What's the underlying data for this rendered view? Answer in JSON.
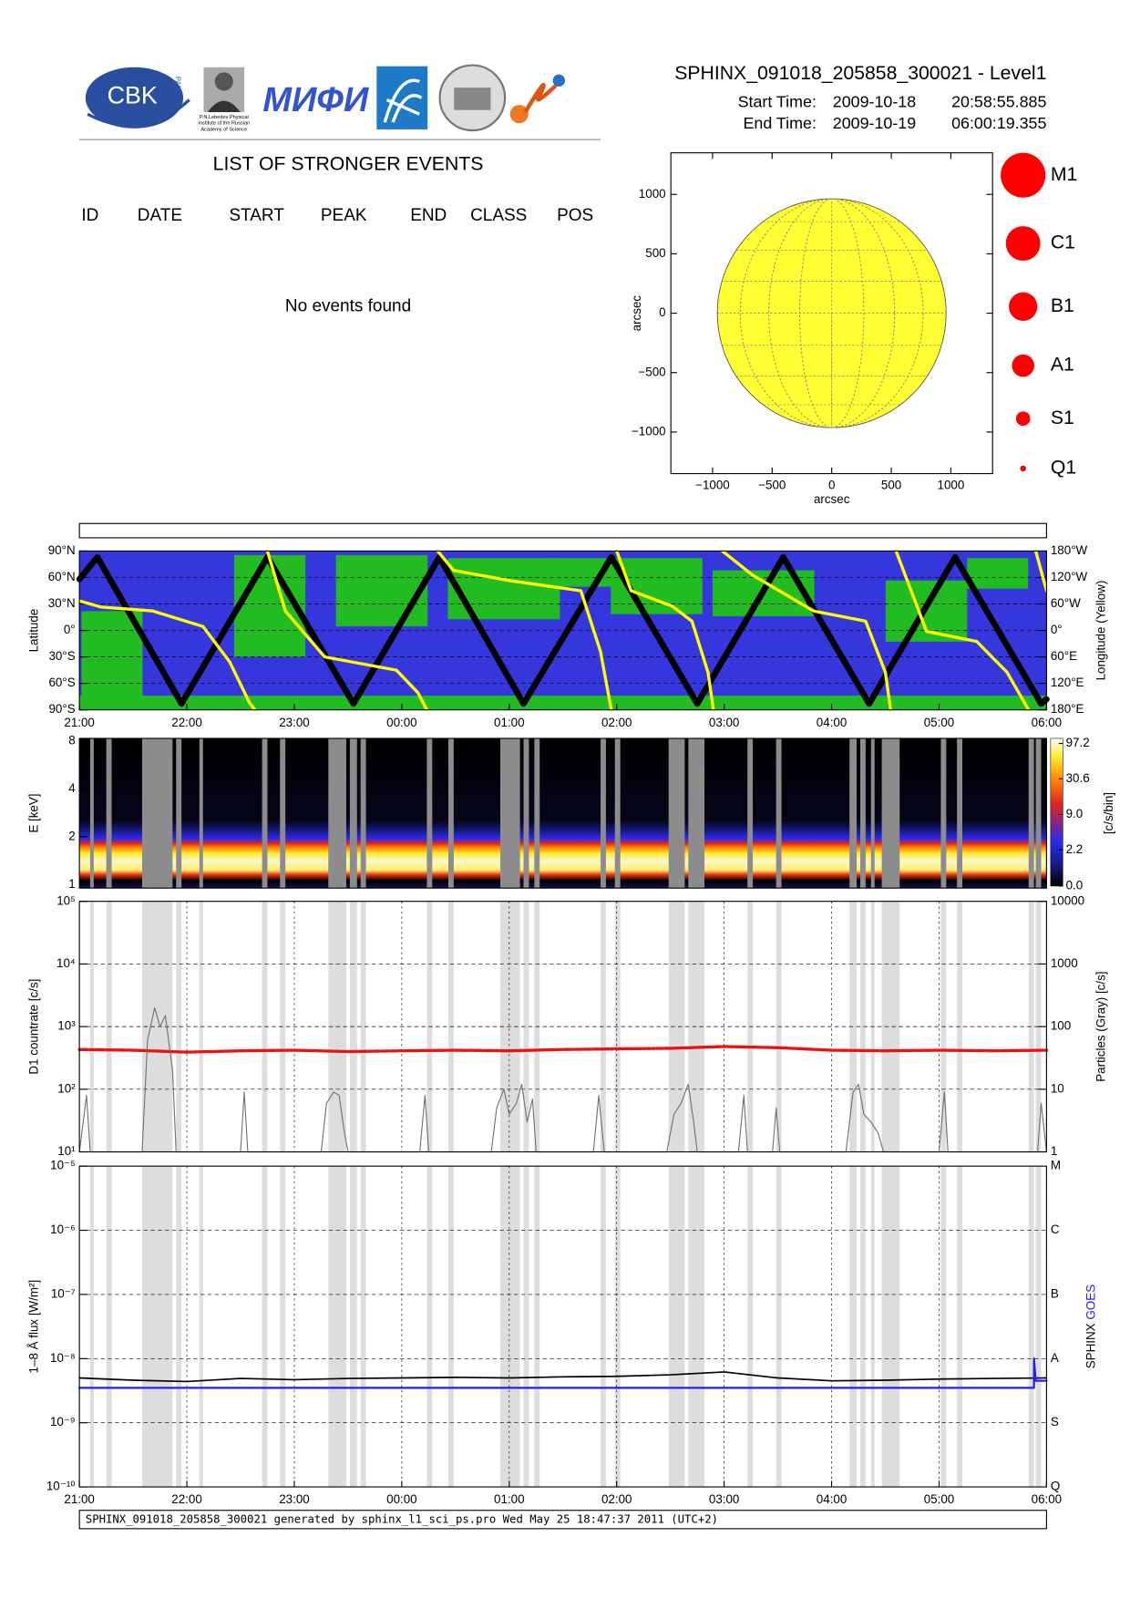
{
  "header": {
    "title": "SPHINX_091018_205858_300021 - Level1",
    "start_label": "Start Time:",
    "start_date": "2009-10-18",
    "start_time": "20:58:55.885",
    "end_label": "End Time:",
    "end_date": "2009-10-19",
    "end_time": "06:00:19.355",
    "logos": [
      "CBK",
      "PAN",
      "P.N.Lebedev Physical",
      "Institute of the Russian",
      "Academy of Science",
      "МИФИ"
    ]
  },
  "events": {
    "title": "LIST OF STRONGER EVENTS",
    "columns": [
      "ID",
      "DATE",
      "START",
      "PEAK",
      "END",
      "CLASS",
      "POS"
    ],
    "message": "No events found"
  },
  "footer": {
    "text": "SPHINX_091018_205858_300021 generated by sphinx_l1_sci_ps.pro Wed May 25 18:47:37 2011 (UTC+2)"
  },
  "chart_data": [
    {
      "type": "disk",
      "xlabel": "arcsec",
      "ylabel": "arcsec",
      "xlim": [
        -1350,
        1350
      ],
      "ylim": [
        -1350,
        1350
      ],
      "xticks": [
        {
          "value": -1000,
          "label": "−1000"
        },
        {
          "value": -500,
          "label": "−500"
        },
        0,
        500,
        1000
      ],
      "yticks": [
        {
          "value": -1000,
          "label": "−1000"
        },
        {
          "value": -500,
          "label": "−500"
        },
        0,
        500,
        1000
      ],
      "disk_radius": 960,
      "disk_color": "#ffff33",
      "size_legend": [
        "M1",
        "C1",
        "B1",
        "A1",
        "S1",
        "Q1"
      ],
      "size_legend_color": "#ff0000"
    },
    {
      "type": "line",
      "ylabel": "Latitude",
      "y2label": "Longitude (Yellow)",
      "xlim": [
        "21:00",
        "06:00"
      ],
      "xticks": [
        "21:00",
        "22:00",
        "23:00",
        "00:00",
        "01:00",
        "02:00",
        "03:00",
        "04:00",
        "05:00",
        "06:00"
      ],
      "ylim": [
        -90,
        90
      ],
      "yticks": [
        {
          "value": -90,
          "label": "90°S"
        },
        {
          "value": -60,
          "label": "60°S"
        },
        {
          "value": -30,
          "label": "30°S"
        },
        {
          "value": 0,
          "label": "0°"
        },
        {
          "value": 30,
          "label": "30°N"
        },
        {
          "value": 60,
          "label": "60°N"
        },
        {
          "value": 90,
          "label": "90°N"
        }
      ],
      "y2lim": [
        -180,
        180
      ],
      "y2ticks": [
        {
          "value": -180,
          "label": "180°E"
        },
        {
          "value": -120,
          "label": "120°E"
        },
        {
          "value": -60,
          "label": "60°E"
        },
        {
          "value": 0,
          "label": "0°"
        },
        {
          "value": 60,
          "label": "60°W"
        },
        {
          "value": 120,
          "label": "120°W"
        },
        {
          "value": 180,
          "label": "180°W"
        }
      ],
      "grid": true,
      "series": [
        {
          "color": "#000000",
          "x": [
            "21:00",
            "21:10",
            "21:57",
            "22:45",
            "23:33",
            "00:21",
            "01:08",
            "01:57",
            "02:45",
            "03:33",
            "04:21",
            "05:09",
            "05:57",
            "06:00"
          ],
          "values": [
            58,
            83,
            -83,
            83,
            -83,
            83,
            -83,
            83,
            -83,
            83,
            -83,
            83,
            -83,
            -78
          ]
        },
        {
          "color": "#ffff00",
          "axis": "y2",
          "x": [
            "21:00",
            "21:12",
            "21:41",
            "22:09",
            "22:24",
            "22:35",
            "22:38",
            null,
            "22:45",
            "22:55",
            "23:17",
            "23:57",
            "00:09",
            "00:14",
            null,
            "00:20",
            "00:29",
            "01:00",
            "01:40",
            "01:51",
            "01:57",
            null,
            "02:00",
            "02:08",
            "02:31",
            "02:42",
            "02:51",
            "02:54",
            null,
            "02:59",
            "03:16",
            "03:50",
            "04:19",
            "04:30",
            "04:33",
            null,
            "04:36",
            "04:53",
            "05:21",
            "05:38",
            "05:50",
            null,
            "05:54",
            "06:00"
          ],
          "values": [
            67,
            53,
            44,
            9,
            -72,
            -164,
            -180,
            null,
            180,
            44,
            -60,
            -90,
            -141,
            -180,
            null,
            180,
            136,
            113,
            90,
            -48,
            -180,
            null,
            180,
            90,
            55,
            21,
            -95,
            -180,
            null,
            180,
            125,
            44,
            21,
            -95,
            -180,
            null,
            180,
            -2,
            -25,
            -95,
            -180,
            null,
            180,
            90
          ]
        }
      ]
    },
    {
      "type": "spectrogram",
      "ylabel": "E [keV]",
      "xlim": [
        "21:00",
        "06:00"
      ],
      "ylim": [
        0.95,
        8.3
      ],
      "log_y": true,
      "yticks": [
        1,
        2,
        4,
        8
      ],
      "clabel": "[c/s/bin]",
      "clim": [
        0,
        97.2
      ],
      "color_scale": "log",
      "cticks": [
        {
          "value": 0,
          "label": "0.0"
        },
        {
          "value": 2.2,
          "label": "2.2"
        },
        {
          "value": 9,
          "label": "9.0"
        },
        {
          "value": 30.6,
          "label": "30.6"
        },
        {
          "value": 97.2,
          "label": "97.2"
        }
      ],
      "gap_color": "#8c8c8c",
      "gaps": [
        [
          "21:06",
          "21:08"
        ],
        [
          "21:15",
          "21:18"
        ],
        [
          "21:35",
          "21:52"
        ],
        [
          "21:54",
          "21:57"
        ],
        [
          "22:07",
          "22:09"
        ],
        [
          "22:42",
          "22:45"
        ],
        [
          "22:52",
          "22:55"
        ],
        [
          "23:19",
          "23:29"
        ],
        [
          "23:31",
          "23:35"
        ],
        [
          "23:37",
          "23:40"
        ],
        [
          "00:14",
          "00:17"
        ],
        [
          "00:26",
          "00:29"
        ],
        [
          "00:55",
          "01:06"
        ],
        [
          "01:08",
          "01:11"
        ],
        [
          "01:14",
          "01:17"
        ],
        [
          "01:51",
          "01:54"
        ],
        [
          "01:59",
          "02:02"
        ],
        [
          "02:29",
          "02:38"
        ],
        [
          "02:40",
          "02:49"
        ],
        [
          "03:13",
          "03:16"
        ],
        [
          "03:29",
          "03:32"
        ],
        [
          "04:10",
          "04:14"
        ],
        [
          "04:16",
          "04:19"
        ],
        [
          "04:22",
          "04:24"
        ],
        [
          "04:28",
          "04:38"
        ],
        [
          "05:01",
          "05:04"
        ],
        [
          "05:10",
          "05:13"
        ],
        [
          "05:50",
          "05:53"
        ],
        [
          "05:54",
          "05:57"
        ]
      ]
    },
    {
      "type": "line",
      "ylabel": "D1 countrate [c/s]",
      "y2label": "Particles (Gray) [c/s]",
      "xlim": [
        "21:00",
        "06:00"
      ],
      "log_y": true,
      "ylim": [
        10,
        100000
      ],
      "yticks": [
        {
          "value": 10,
          "label": "10¹"
        },
        {
          "value": 100,
          "label": "10²"
        },
        {
          "value": 1000,
          "label": "10³"
        },
        {
          "value": 10000,
          "label": "10⁴"
        },
        {
          "value": 100000,
          "label": "10⁵"
        }
      ],
      "y2lim": [
        1,
        10000
      ],
      "y2ticks": [
        1,
        10,
        100,
        1000,
        10000
      ],
      "grid": true,
      "xgrid": true,
      "gap_color": "#dddddd",
      "series": [
        {
          "color": "#ee1111",
          "x": [
            "21:00",
            "21:30",
            "22:00",
            "22:30",
            "23:00",
            "23:30",
            "00:00",
            "00:30",
            "01:00",
            "01:30",
            "02:00",
            "02:30",
            "03:00",
            "03:30",
            "04:00",
            "04:30",
            "05:00",
            "05:30",
            "06:00"
          ],
          "values": [
            430,
            420,
            390,
            410,
            420,
            400,
            410,
            420,
            410,
            430,
            440,
            450,
            480,
            460,
            420,
            410,
            420,
            410,
            420
          ]
        },
        {
          "color": "#707070",
          "axis": "y2",
          "x": [
            "21:00",
            "21:04",
            "21:06",
            "21:35",
            "21:38",
            "21:42",
            "21:45",
            "21:48",
            "21:52",
            "21:54",
            "22:30",
            "22:32",
            "22:34",
            "23:15",
            "23:18",
            "23:22",
            "23:25",
            "23:28",
            "23:30",
            "00:10",
            "00:13",
            "00:15",
            "00:50",
            "00:53",
            "00:57",
            "01:00",
            "01:04",
            "01:07",
            "01:10",
            "01:13",
            "01:15",
            "01:47",
            "01:50",
            "01:53",
            "02:28",
            "02:32",
            "02:36",
            "02:40",
            "02:43",
            "02:45",
            "03:08",
            "03:11",
            "03:13",
            "03:27",
            "03:29",
            "03:31",
            "04:08",
            "04:12",
            "04:15",
            "04:18",
            "04:22",
            "04:26",
            "04:29",
            "05:00",
            "05:03",
            "05:05",
            "05:55",
            "05:57",
            "06:00"
          ],
          "values": [
            1,
            8,
            1,
            1,
            60,
            200,
            100,
            150,
            20,
            1,
            1,
            9,
            1,
            1,
            6,
            9,
            8,
            2,
            1,
            1,
            8,
            1,
            1,
            5,
            10,
            4,
            6,
            12,
            3,
            7,
            1,
            1,
            8,
            1,
            1,
            4,
            6,
            12,
            3,
            1,
            1,
            8,
            1,
            1,
            5,
            1,
            1,
            9,
            12,
            4,
            3,
            2,
            1,
            1,
            9,
            1,
            1,
            6,
            1
          ]
        }
      ]
    },
    {
      "type": "line",
      "ylabel": "1–8 Å flux [W/m²]",
      "xlim": [
        "21:00",
        "06:00"
      ],
      "xticks": [
        "21:00",
        "22:00",
        "23:00",
        "00:00",
        "01:00",
        "02:00",
        "03:00",
        "04:00",
        "05:00",
        "06:00"
      ],
      "log_y": true,
      "ylim": [
        1e-10,
        1e-05
      ],
      "yticks": [
        {
          "value": 1e-10,
          "label": "10⁻¹⁰"
        },
        {
          "value": 1e-09,
          "label": "10⁻⁹"
        },
        {
          "value": 1e-08,
          "label": "10⁻⁸"
        },
        {
          "value": 1e-07,
          "label": "10⁻⁷"
        },
        {
          "value": 1e-06,
          "label": "10⁻⁶"
        },
        {
          "value": 1e-05,
          "label": "10⁻⁵"
        }
      ],
      "class_labels": [
        "Q",
        "S",
        "A",
        "B",
        "C",
        "M"
      ],
      "grid": true,
      "xgrid": true,
      "gap_color": "#dddddd",
      "series": [
        {
          "name": "SPHINX",
          "color": "#000000",
          "x": [
            "21:00",
            "21:30",
            "22:00",
            "22:30",
            "23:00",
            "23:30",
            "00:00",
            "00:30",
            "01:00",
            "01:30",
            "02:00",
            "02:30",
            "03:00",
            "03:30",
            "04:00",
            "04:30",
            "05:00",
            "05:30",
            "06:00"
          ],
          "values": [
            5e-09,
            4.6e-09,
            4.4e-09,
            4.9e-09,
            4.7e-09,
            4.9e-09,
            5e-09,
            5.1e-09,
            5e-09,
            5.2e-09,
            5.3e-09,
            5.6e-09,
            6.2e-09,
            5e-09,
            4.5e-09,
            4.6e-09,
            4.8e-09,
            4.9e-09,
            5e-09
          ]
        },
        {
          "name": "GOES",
          "color": "#2222ee",
          "x": [
            "21:00",
            "05:53",
            "05:53",
            "05:54",
            "06:00"
          ],
          "values": [
            3.5e-09,
            3.5e-09,
            1e-08,
            4.5e-09,
            4.5e-09
          ]
        }
      ]
    }
  ]
}
